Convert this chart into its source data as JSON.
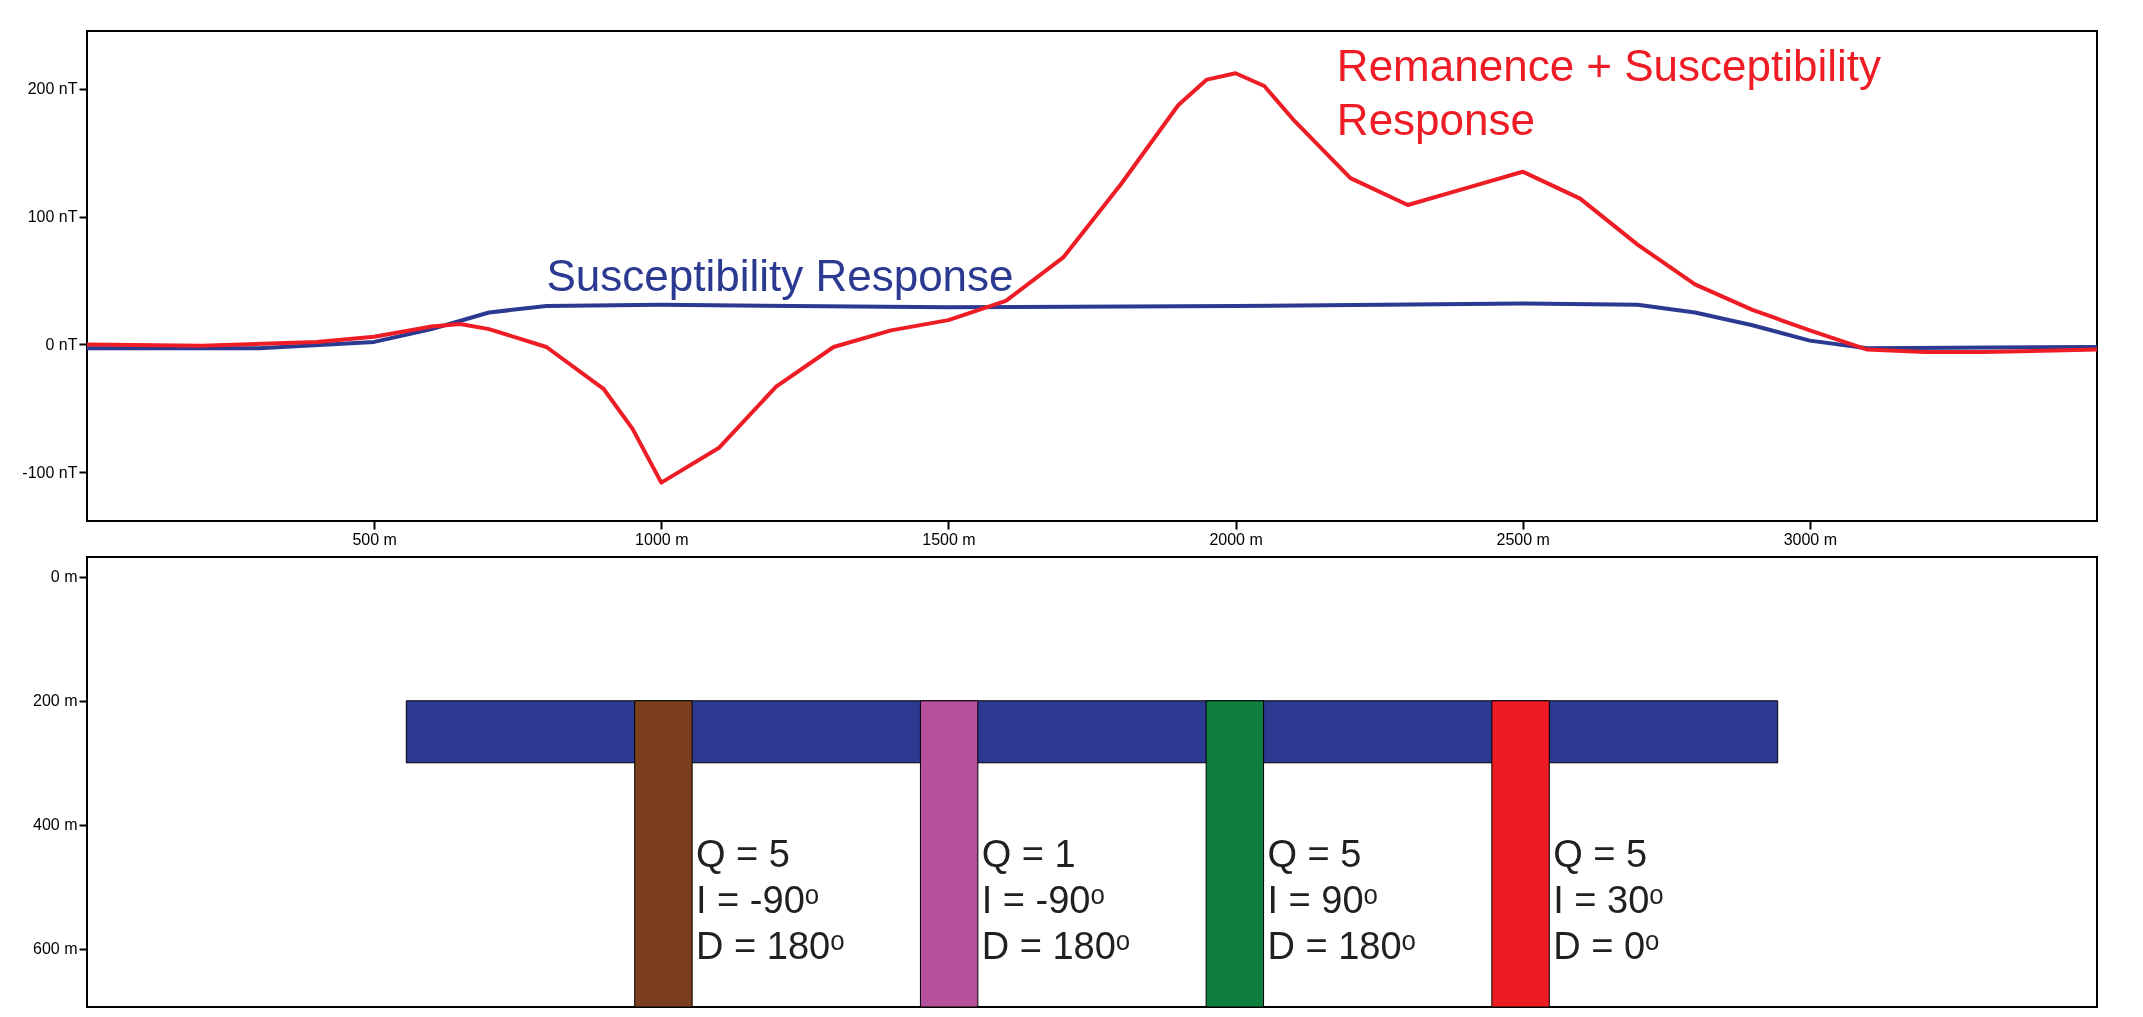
{
  "chart_data": [
    {
      "type": "line",
      "x": [
        0,
        200,
        400,
        500,
        600,
        650,
        700,
        800,
        900,
        950,
        1000,
        1100,
        1200,
        1300,
        1400,
        1500,
        1600,
        1700,
        1800,
        1900,
        1950,
        2000,
        2050,
        2100,
        2200,
        2300,
        2400,
        2500,
        2600,
        2700,
        2800,
        2900,
        3000,
        3100,
        3200,
        3300,
        3500
      ],
      "series": [
        {
          "name": "Susceptibility Response",
          "color": "#2b3990",
          "x": [
            0,
            300,
            500,
            600,
            700,
            800,
            1000,
            1500,
            2000,
            2500,
            2700,
            2800,
            2900,
            3000,
            3100,
            3500
          ],
          "values": [
            -3,
            -3,
            2,
            12,
            25,
            30,
            31,
            29,
            30,
            32,
            31,
            25,
            15,
            3,
            -3,
            -2
          ]
        },
        {
          "name": "Remanence + Susceptibility Response",
          "color": "#ee1c25",
          "values": [
            0,
            -1,
            2,
            6,
            14,
            16,
            12,
            -2,
            -35,
            -66,
            -108,
            -81,
            -33,
            -2,
            11,
            19,
            34,
            68,
            125,
            187,
            207,
            212,
            202,
            176,
            130,
            109,
            122,
            135,
            114,
            78,
            47,
            27,
            11,
            -4,
            -6,
            -6,
            -4
          ]
        }
      ],
      "xlim": [
        0,
        3500
      ],
      "xticks": [
        {
          "value": 500,
          "label": "500 m"
        },
        {
          "value": 1000,
          "label": "1000 m"
        },
        {
          "value": 1500,
          "label": "1500 m"
        },
        {
          "value": 2000,
          "label": "2000 m"
        },
        {
          "value": 2500,
          "label": "2500 m"
        },
        {
          "value": 3000,
          "label": "3000 m"
        }
      ],
      "ylim": [
        -138,
        245
      ],
      "yticks": [
        {
          "value": -100,
          "label": "-100 nT"
        },
        {
          "value": 0,
          "label": "0 nT"
        },
        {
          "value": 100,
          "label": "100 nT"
        },
        {
          "value": 200,
          "label": "200 nT"
        }
      ],
      "grid": false,
      "legend": false
    },
    {
      "type": "bar",
      "x": [
        1000,
        1500,
        2000,
        2500
      ],
      "base": [
        200,
        200,
        200,
        200
      ],
      "values": [
        494,
        494,
        494,
        494
      ],
      "colors": [
        "#7b3f1e",
        "#b5519c",
        "#0e7f3e",
        "#ed1c24"
      ],
      "xlim": [
        0,
        3500
      ],
      "ylim": [
        694,
        -32
      ],
      "yticks": [
        {
          "value": 0,
          "label": "0 m"
        },
        {
          "value": 200,
          "label": "200 m"
        },
        {
          "value": 400,
          "label": "400 m"
        },
        {
          "value": 600,
          "label": "600 m"
        }
      ],
      "tick_labels": "y",
      "annotations": [
        {
          "text": "Q = 5\nI = -90ᵒ\nD = 180ᵒ",
          "x": 1050,
          "y": 420
        },
        {
          "text": "Q = 1\nI = -90ᵒ\nD = 180ᵒ",
          "x": 1550,
          "y": 420
        },
        {
          "text": "Q = 5\nI =  90ᵒ\nD = 180ᵒ",
          "x": 2050,
          "y": 420
        },
        {
          "text": "Q = 5\nI =  30ᵒ\nD = 0ᵒ",
          "x": 2550,
          "y": 420
        }
      ]
    }
  ]
}
